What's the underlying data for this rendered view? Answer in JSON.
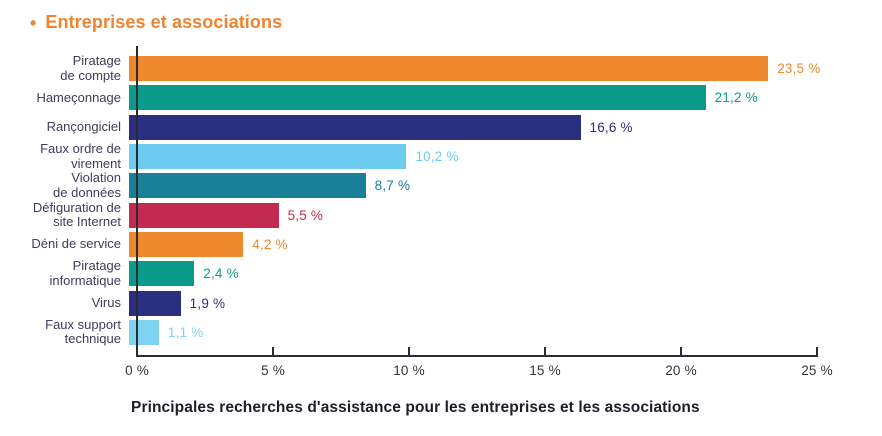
{
  "title": {
    "bullet": "•",
    "text": "Entreprises et associations",
    "color": "#EF8330"
  },
  "chart_data": {
    "type": "bar",
    "orientation": "horizontal",
    "title": "Entreprises et associations",
    "caption": "Principales recherches d'assistance pour les entreprises et les associations",
    "categories": [
      "Piratage\nde compte",
      "Hameçonnage",
      "Rançongiciel",
      "Faux ordre de\nvirement",
      "Violation\nde données",
      "Défiguration de\nsite Internet",
      "Déni de service",
      "Piratage\ninformatique",
      "Virus",
      "Faux support\ntechnique"
    ],
    "values": [
      23.5,
      21.2,
      16.6,
      10.2,
      8.7,
      5.5,
      4.2,
      2.4,
      1.9,
      1.1
    ],
    "value_labels": [
      "23,5 %",
      "21,2 %",
      "16,6 %",
      "10,2 %",
      "8,7 %",
      "5,5 %",
      "4,2 %",
      "2,4 %",
      "1,9 %",
      "1,1 %"
    ],
    "bar_colors": [
      "#F0892D",
      "#0B9B8A",
      "#2B2F7F",
      "#6CCBF0",
      "#1A7F99",
      "#C22A4F",
      "#F0892D",
      "#0B9B8A",
      "#2B2F7F",
      "#7ED3F3"
    ],
    "xlim": [
      0,
      25
    ],
    "tick_values": [
      0,
      5,
      10,
      15,
      20,
      25
    ],
    "tick_labels": [
      "0 %",
      "5 %",
      "10 %",
      "15 %",
      "20 %",
      "25 %"
    ],
    "grid": false,
    "legend": false
  },
  "style_colors": {
    "category_label": "#3D3D5C",
    "axis": "#2B2B33",
    "tick_label": "#33333E",
    "caption": "#1E1E28"
  }
}
